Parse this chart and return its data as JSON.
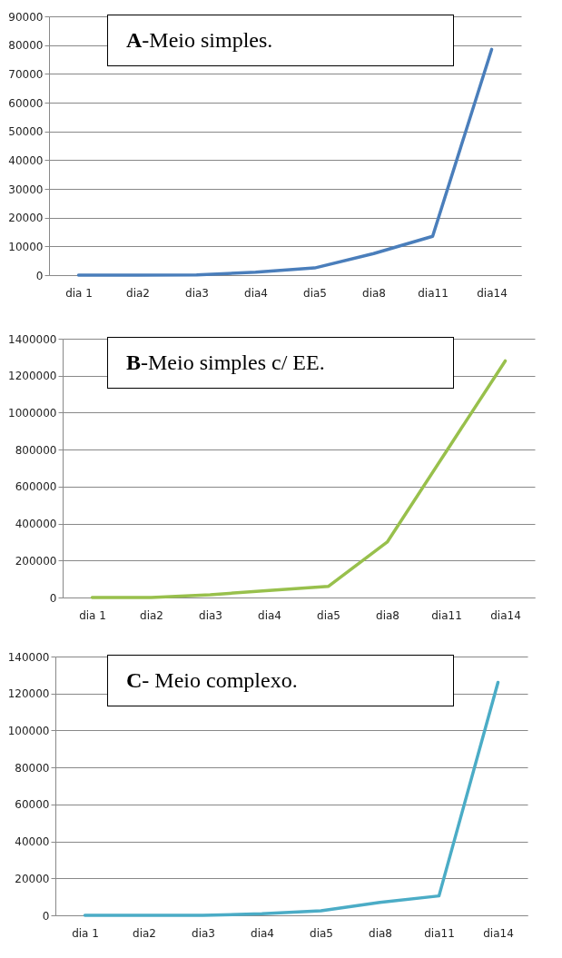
{
  "chart_data": [
    {
      "type": "line",
      "title": "A-Meio simples.",
      "categories": [
        "dia 1",
        "dia2",
        "dia3",
        "dia4",
        "dia5",
        "dia8",
        "dia11",
        "dia14"
      ],
      "series": [
        {
          "color": "#4a7ebb",
          "values": [
            0,
            0,
            100,
            1000,
            2500,
            7500,
            13500,
            78500
          ]
        }
      ],
      "ylim": [
        0,
        90000
      ],
      "yticks": [
        0,
        10000,
        20000,
        30000,
        40000,
        50000,
        60000,
        70000,
        80000,
        90000
      ],
      "grid": "y"
    },
    {
      "type": "line",
      "title": "B-Meio simples c/ EE.",
      "categories": [
        "dia 1",
        "dia2",
        "dia3",
        "dia4",
        "dia5",
        "dia8",
        "dia11",
        "dia14"
      ],
      "series": [
        {
          "color": "#98c04c",
          "values": [
            0,
            0,
            15000,
            38000,
            60000,
            300000,
            790000,
            1280000
          ]
        }
      ],
      "ylim": [
        0,
        1400000
      ],
      "yticks": [
        0,
        200000,
        400000,
        600000,
        800000,
        1000000,
        1200000,
        1400000
      ],
      "grid": "y"
    },
    {
      "type": "line",
      "title": "C- Meio complexo.",
      "categories": [
        "dia 1",
        "dia2",
        "dia3",
        "dia4",
        "dia5",
        "dia8",
        "dia11",
        "dia14"
      ],
      "series": [
        {
          "color": "#4bacc6",
          "values": [
            0,
            0,
            0,
            800,
            2500,
            7000,
            10500,
            126000
          ]
        }
      ],
      "ylim": [
        0,
        140000
      ],
      "yticks": [
        0,
        20000,
        40000,
        60000,
        80000,
        100000,
        120000,
        140000
      ],
      "grid": "y"
    }
  ]
}
